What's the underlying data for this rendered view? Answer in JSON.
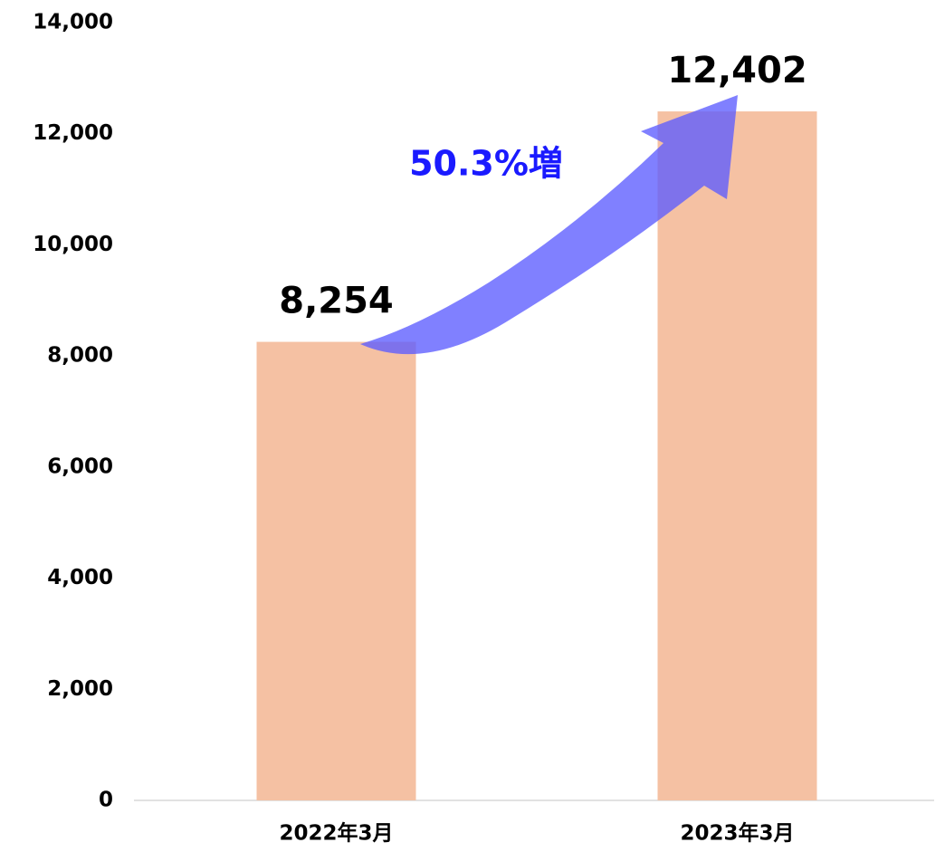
{
  "chart_data": {
    "type": "bar",
    "annotation": "50.3%増",
    "categories": [
      "2022年3月",
      "2023年3月"
    ],
    "values": [
      8254,
      12402
    ],
    "value_labels": [
      "8,254",
      "12,402"
    ],
    "color": "#f5c1a3",
    "ylim": [
      0,
      14000
    ],
    "yticks": [
      0,
      {
        "value": 2000,
        "label": "2,000"
      },
      {
        "value": 4000,
        "label": "4,000"
      },
      {
        "value": 6000,
        "label": "6,000"
      },
      {
        "value": 8000,
        "label": "8,000"
      },
      {
        "value": 10000,
        "label": "10,000"
      },
      {
        "value": 12000,
        "label": "12,000"
      },
      {
        "value": 14000,
        "label": "14,000"
      }
    ],
    "grid": false
  }
}
